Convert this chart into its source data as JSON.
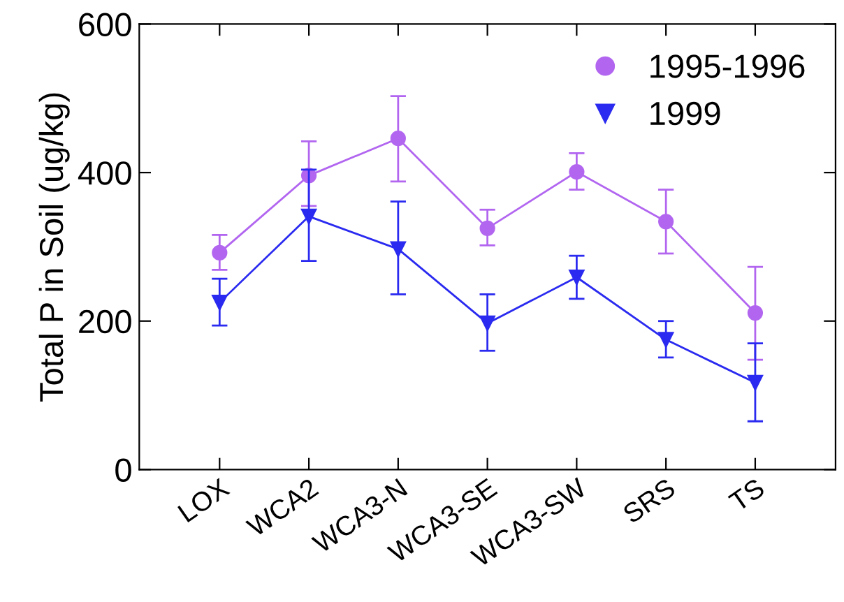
{
  "chart_data": {
    "type": "line",
    "ylabel": "Total P in Soil (ug/kg)",
    "categories": [
      "LOX",
      "WCA2",
      "WCA3-N",
      "WCA3-SE",
      "WCA3-SW",
      "SRS",
      "TS"
    ],
    "series": [
      {
        "name": "1995-1996",
        "color": "#b266f0",
        "marker": "circle",
        "values": [
          292,
          396,
          446,
          325,
          401,
          334,
          211
        ],
        "errors": [
          [
            269,
            316
          ],
          [
            355,
            442
          ],
          [
            388,
            503
          ],
          [
            302,
            350
          ],
          [
            377,
            426
          ],
          [
            291,
            377
          ],
          [
            148,
            273
          ]
        ]
      },
      {
        "name": "1999",
        "color": "#2a2af0",
        "marker": "triangle",
        "values": [
          225,
          341,
          297,
          197,
          259,
          175,
          117
        ],
        "errors": [
          [
            194,
            257
          ],
          [
            281,
            404
          ],
          [
            236,
            361
          ],
          [
            160,
            236
          ],
          [
            230,
            288
          ],
          [
            151,
            200
          ],
          [
            65,
            170
          ]
        ]
      }
    ],
    "ylim": [
      0,
      600
    ],
    "yticks": [
      0,
      200,
      400,
      600
    ],
    "grid": false,
    "legend": "top right"
  }
}
